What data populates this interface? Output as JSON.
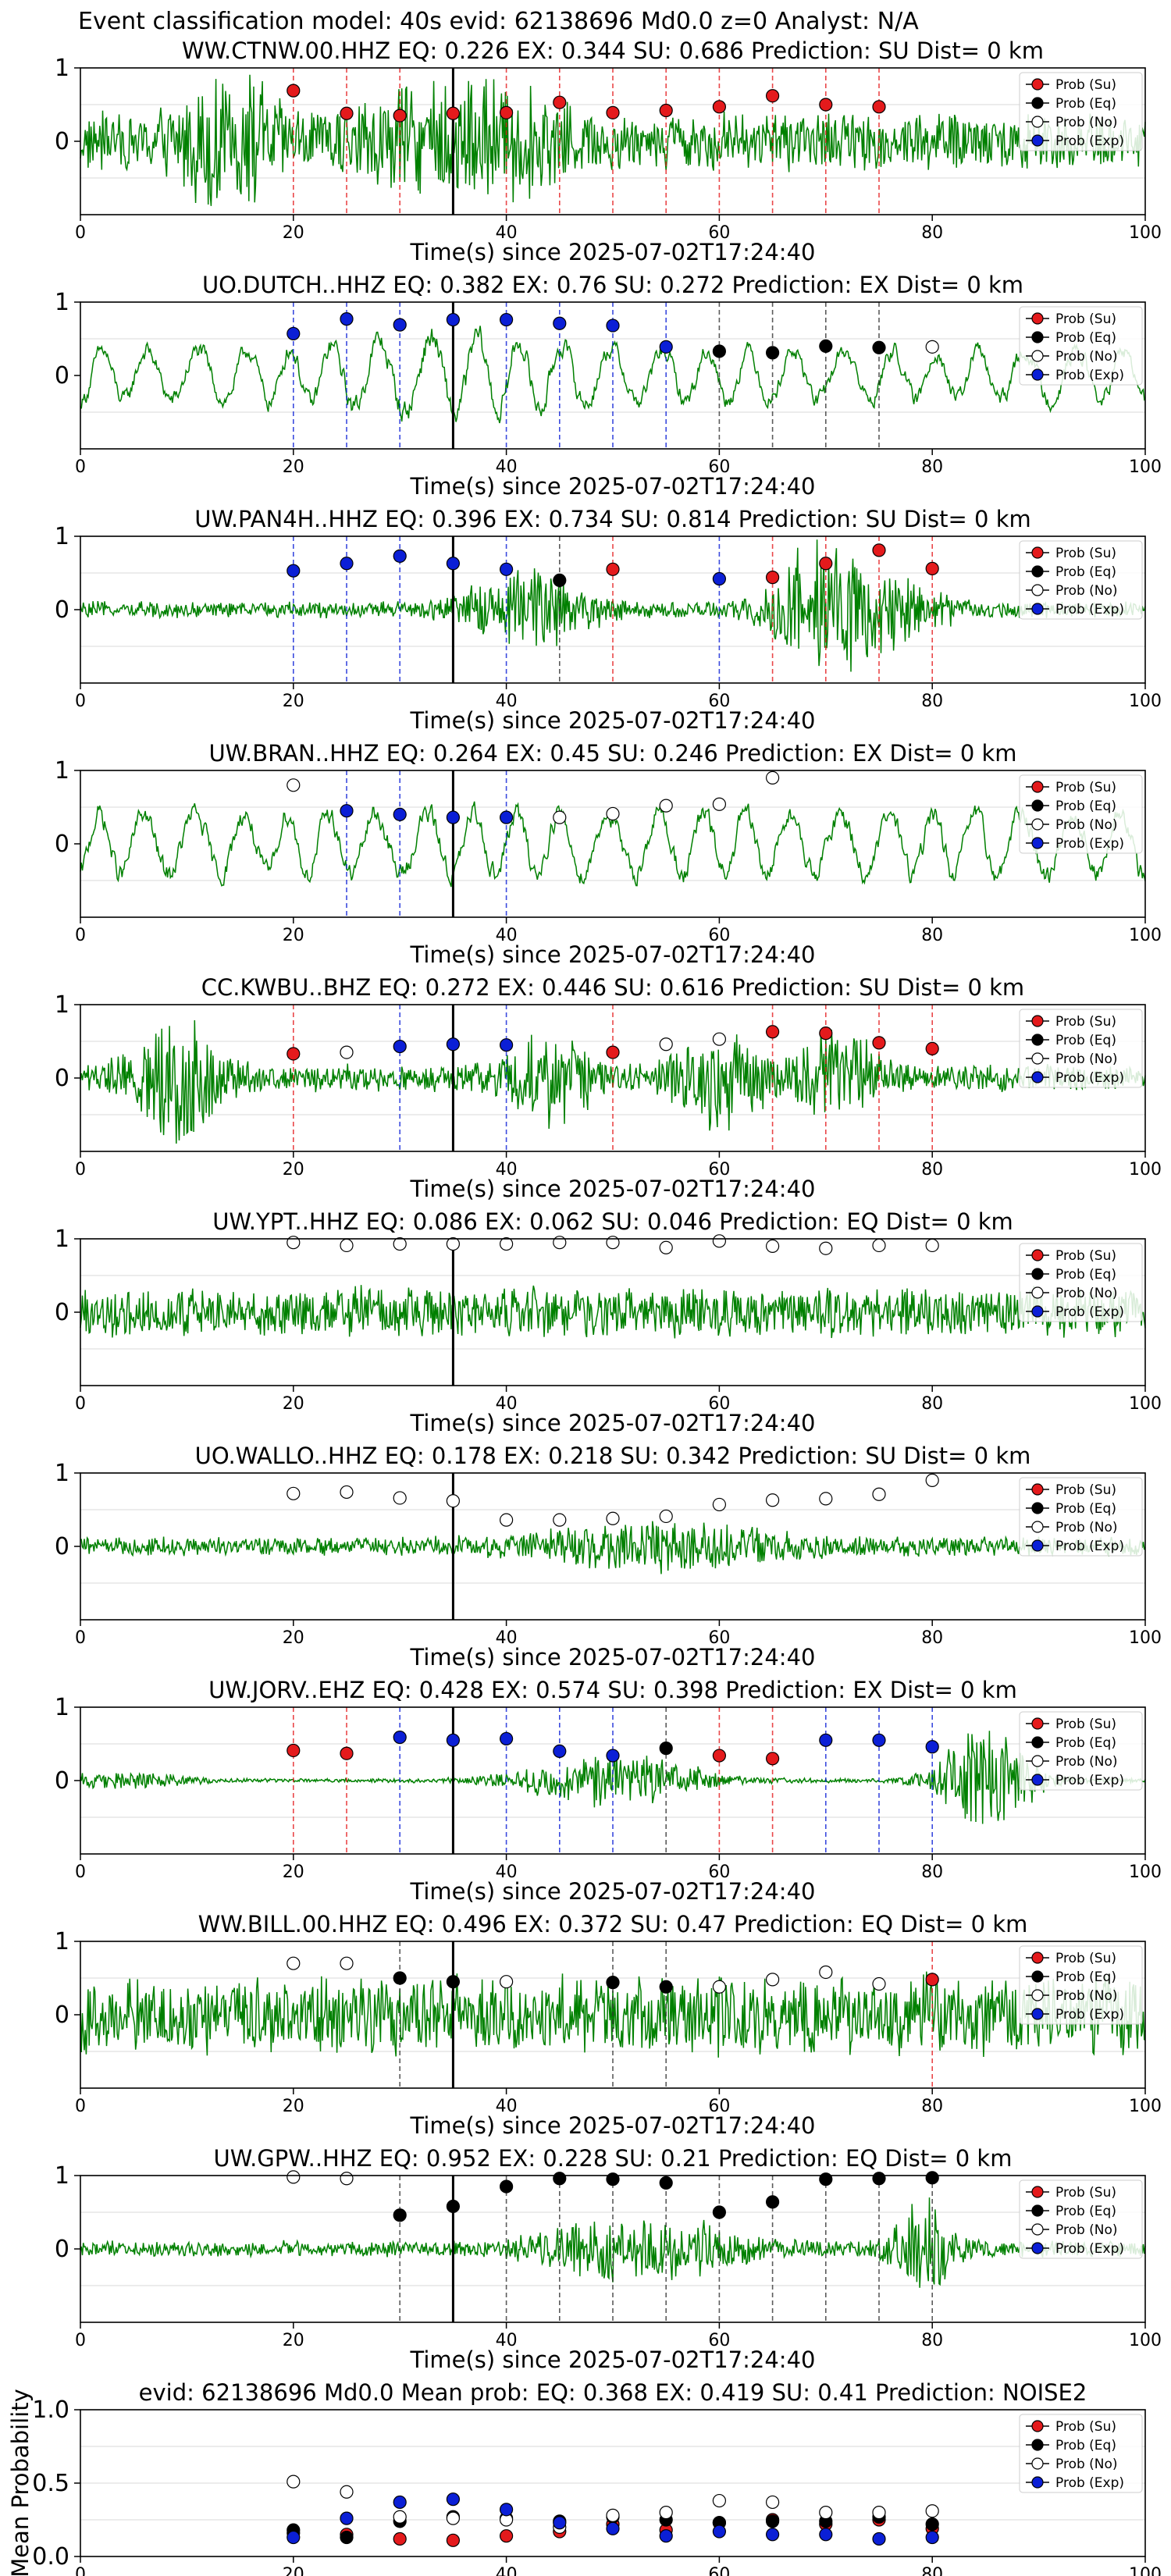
{
  "figure": {
    "title": "Event classification model: 40s evid: 62138696 Md0.0 z=0 Analyst: N/A",
    "xlabel": "Time(s) since 2025-07-02T17:24:40",
    "xlim": [
      0,
      100
    ],
    "xticks": [
      "0",
      "20",
      "40",
      "60",
      "80",
      "100"
    ],
    "vline_time": 35,
    "legend": [
      "Prob (Su)",
      "Prob (Eq)",
      "Prob (No)",
      "Prob (Exp)"
    ]
  },
  "colors": {
    "trace": "#008000",
    "Su": "#e41a1c",
    "Eq": "#000000",
    "No": "#ffffff",
    "Exp": "#0b1fd6",
    "grid": "#e6e6e6"
  },
  "chart_data": [
    {
      "type": "scatter",
      "title": "WW.CTNW.00.HHZ   EQ: 0.226  EX: 0.344  SU: 0.686   Prediction: SU    Dist= 0 km",
      "ylim": [
        -1,
        1
      ],
      "yticks": [
        "0",
        "1"
      ],
      "waveform": {
        "amp": 0.45,
        "character": "burst",
        "bursts": [
          {
            "t": 14,
            "a": 0.75,
            "w": 3
          },
          {
            "t": 36,
            "a": 0.6,
            "w": 6
          }
        ]
      },
      "points": [
        {
          "x": 20,
          "y": 0.69,
          "class": "Su"
        },
        {
          "x": 25,
          "y": 0.38,
          "class": "Su"
        },
        {
          "x": 30,
          "y": 0.35,
          "class": "Su"
        },
        {
          "x": 35,
          "y": 0.38,
          "class": "Su"
        },
        {
          "x": 40,
          "y": 0.39,
          "class": "Su"
        },
        {
          "x": 45,
          "y": 0.53,
          "class": "Su"
        },
        {
          "x": 50,
          "y": 0.39,
          "class": "Su"
        },
        {
          "x": 55,
          "y": 0.42,
          "class": "Su"
        },
        {
          "x": 60,
          "y": 0.47,
          "class": "Su"
        },
        {
          "x": 65,
          "y": 0.62,
          "class": "Su"
        },
        {
          "x": 70,
          "y": 0.5,
          "class": "Su"
        },
        {
          "x": 75,
          "y": 0.47,
          "class": "Su"
        }
      ]
    },
    {
      "type": "scatter",
      "title": "UO.DUTCH..HHZ   EQ: 0.382  EX: 0.76  SU: 0.272   Prediction: EX    Dist= 0 km",
      "ylim": [
        -1,
        1
      ],
      "yticks": [
        "0",
        "1"
      ],
      "waveform": {
        "amp": 0.45,
        "character": "oscillation",
        "bursts": [
          {
            "t": 35,
            "a": 0.25,
            "w": 8
          }
        ]
      },
      "points": [
        {
          "x": 20,
          "y": 0.57,
          "class": "Exp"
        },
        {
          "x": 25,
          "y": 0.77,
          "class": "Exp"
        },
        {
          "x": 30,
          "y": 0.69,
          "class": "Exp"
        },
        {
          "x": 35,
          "y": 0.76,
          "class": "Exp"
        },
        {
          "x": 40,
          "y": 0.76,
          "class": "Exp"
        },
        {
          "x": 45,
          "y": 0.71,
          "class": "Exp"
        },
        {
          "x": 50,
          "y": 0.68,
          "class": "Exp"
        },
        {
          "x": 55,
          "y": 0.39,
          "class": "Exp"
        },
        {
          "x": 60,
          "y": 0.33,
          "class": "Eq"
        },
        {
          "x": 65,
          "y": 0.31,
          "class": "Eq"
        },
        {
          "x": 70,
          "y": 0.4,
          "class": "Eq"
        },
        {
          "x": 75,
          "y": 0.38,
          "class": "Eq"
        },
        {
          "x": 80,
          "y": 0.39,
          "class": "No"
        }
      ]
    },
    {
      "type": "scatter",
      "title": "UW.PAN4H..HHZ   EQ: 0.396  EX: 0.734  SU: 0.814   Prediction: SU    Dist= 0 km",
      "ylim": [
        -1,
        1
      ],
      "yticks": [
        "0",
        "1"
      ],
      "waveform": {
        "amp": 0.12,
        "character": "burst",
        "bursts": [
          {
            "t": 42,
            "a": 0.55,
            "w": 4
          },
          {
            "t": 69,
            "a": 0.8,
            "w": 3
          },
          {
            "t": 75,
            "a": 0.5,
            "w": 4
          }
        ]
      },
      "points": [
        {
          "x": 20,
          "y": 0.53,
          "class": "Exp"
        },
        {
          "x": 25,
          "y": 0.63,
          "class": "Exp"
        },
        {
          "x": 30,
          "y": 0.73,
          "class": "Exp"
        },
        {
          "x": 35,
          "y": 0.63,
          "class": "Exp"
        },
        {
          "x": 40,
          "y": 0.55,
          "class": "Exp"
        },
        {
          "x": 45,
          "y": 0.4,
          "class": "Eq"
        },
        {
          "x": 50,
          "y": 0.55,
          "class": "Su"
        },
        {
          "x": 60,
          "y": 0.42,
          "class": "Exp"
        },
        {
          "x": 65,
          "y": 0.44,
          "class": "Su"
        },
        {
          "x": 70,
          "y": 0.63,
          "class": "Su"
        },
        {
          "x": 75,
          "y": 0.81,
          "class": "Su"
        },
        {
          "x": 80,
          "y": 0.56,
          "class": "Su"
        }
      ]
    },
    {
      "type": "scatter",
      "title": "UW.BRAN..HHZ   EQ: 0.264  EX: 0.45  SU: 0.246   Prediction: EX    Dist= 0 km",
      "ylim": [
        -1,
        1
      ],
      "yticks": [
        "0",
        "1"
      ],
      "waveform": {
        "amp": 0.55,
        "character": "oscillation",
        "bursts": []
      },
      "points": [
        {
          "x": 20,
          "y": 0.8,
          "class": "No"
        },
        {
          "x": 25,
          "y": 0.45,
          "class": "Exp"
        },
        {
          "x": 30,
          "y": 0.4,
          "class": "Exp"
        },
        {
          "x": 35,
          "y": 0.36,
          "class": "Exp"
        },
        {
          "x": 40,
          "y": 0.36,
          "class": "Exp"
        },
        {
          "x": 45,
          "y": 0.36,
          "class": "No"
        },
        {
          "x": 50,
          "y": 0.41,
          "class": "No"
        },
        {
          "x": 55,
          "y": 0.52,
          "class": "No"
        },
        {
          "x": 60,
          "y": 0.54,
          "class": "No"
        },
        {
          "x": 65,
          "y": 0.9,
          "class": "No"
        }
      ]
    },
    {
      "type": "scatter",
      "title": "CC.KWBU..BHZ   EQ: 0.272  EX: 0.446  SU: 0.616   Prediction: SU    Dist= 0 km",
      "ylim": [
        -1,
        1
      ],
      "yticks": [
        "0",
        "1"
      ],
      "waveform": {
        "amp": 0.2,
        "character": "burst",
        "bursts": [
          {
            "t": 9,
            "a": 0.85,
            "w": 3
          },
          {
            "t": 44,
            "a": 0.55,
            "w": 3
          },
          {
            "t": 60,
            "a": 0.6,
            "w": 3
          },
          {
            "t": 71,
            "a": 0.6,
            "w": 3
          }
        ]
      },
      "points": [
        {
          "x": 20,
          "y": 0.33,
          "class": "Su"
        },
        {
          "x": 25,
          "y": 0.35,
          "class": "No"
        },
        {
          "x": 30,
          "y": 0.43,
          "class": "Exp"
        },
        {
          "x": 35,
          "y": 0.46,
          "class": "Exp"
        },
        {
          "x": 40,
          "y": 0.45,
          "class": "Exp"
        },
        {
          "x": 50,
          "y": 0.35,
          "class": "Su"
        },
        {
          "x": 55,
          "y": 0.46,
          "class": "No"
        },
        {
          "x": 60,
          "y": 0.53,
          "class": "No"
        },
        {
          "x": 65,
          "y": 0.63,
          "class": "Su"
        },
        {
          "x": 70,
          "y": 0.61,
          "class": "Su"
        },
        {
          "x": 75,
          "y": 0.48,
          "class": "Su"
        },
        {
          "x": 80,
          "y": 0.4,
          "class": "Su"
        }
      ]
    },
    {
      "type": "scatter",
      "title": "UW.YPT..HHZ   EQ: 0.086  EX: 0.062  SU: 0.046   Prediction: EQ    Dist= 0 km",
      "ylim": [
        -1,
        1
      ],
      "yticks": [
        "0",
        "1"
      ],
      "waveform": {
        "amp": 0.38,
        "character": "noise",
        "bursts": []
      },
      "points": [
        {
          "x": 20,
          "y": 0.95,
          "class": "No"
        },
        {
          "x": 25,
          "y": 0.91,
          "class": "No"
        },
        {
          "x": 30,
          "y": 0.93,
          "class": "No"
        },
        {
          "x": 35,
          "y": 0.93,
          "class": "No"
        },
        {
          "x": 40,
          "y": 0.93,
          "class": "No"
        },
        {
          "x": 45,
          "y": 0.95,
          "class": "No"
        },
        {
          "x": 50,
          "y": 0.95,
          "class": "No"
        },
        {
          "x": 55,
          "y": 0.88,
          "class": "No"
        },
        {
          "x": 60,
          "y": 0.97,
          "class": "No"
        },
        {
          "x": 65,
          "y": 0.9,
          "class": "No"
        },
        {
          "x": 70,
          "y": 0.87,
          "class": "No"
        },
        {
          "x": 75,
          "y": 0.91,
          "class": "No"
        },
        {
          "x": 80,
          "y": 0.91,
          "class": "No"
        }
      ]
    },
    {
      "type": "scatter",
      "title": "UO.WALLO..HHZ   EQ: 0.178  EX: 0.218  SU: 0.342   Prediction: SU    Dist= 0 km",
      "ylim": [
        -1,
        1
      ],
      "yticks": [
        "0",
        "1"
      ],
      "waveform": {
        "amp": 0.14,
        "character": "noise",
        "bursts": [
          {
            "t": 55,
            "a": 0.3,
            "w": 8
          }
        ]
      },
      "points": [
        {
          "x": 20,
          "y": 0.72,
          "class": "No"
        },
        {
          "x": 25,
          "y": 0.74,
          "class": "No"
        },
        {
          "x": 30,
          "y": 0.66,
          "class": "No"
        },
        {
          "x": 35,
          "y": 0.62,
          "class": "No"
        },
        {
          "x": 40,
          "y": 0.36,
          "class": "No"
        },
        {
          "x": 45,
          "y": 0.36,
          "class": "No"
        },
        {
          "x": 50,
          "y": 0.38,
          "class": "No"
        },
        {
          "x": 55,
          "y": 0.41,
          "class": "No"
        },
        {
          "x": 60,
          "y": 0.57,
          "class": "No"
        },
        {
          "x": 65,
          "y": 0.63,
          "class": "No"
        },
        {
          "x": 70,
          "y": 0.65,
          "class": "No"
        },
        {
          "x": 75,
          "y": 0.71,
          "class": "No"
        },
        {
          "x": 80,
          "y": 0.9,
          "class": "No"
        }
      ]
    },
    {
      "type": "scatter",
      "title": "UW.JORV..EHZ   EQ: 0.428  EX: 0.574  SU: 0.398   Prediction: EX    Dist= 0 km",
      "ylim": [
        -1,
        1
      ],
      "yticks": [
        "0",
        "1"
      ],
      "waveform": {
        "amp": 0.03,
        "character": "burst",
        "bursts": [
          {
            "t": 4,
            "a": 0.12,
            "w": 4
          },
          {
            "t": 50,
            "a": 0.4,
            "w": 6
          },
          {
            "t": 85,
            "a": 0.85,
            "w": 3
          }
        ]
      },
      "points": [
        {
          "x": 20,
          "y": 0.41,
          "class": "Su"
        },
        {
          "x": 25,
          "y": 0.37,
          "class": "Su"
        },
        {
          "x": 30,
          "y": 0.59,
          "class": "Exp"
        },
        {
          "x": 35,
          "y": 0.55,
          "class": "Exp"
        },
        {
          "x": 40,
          "y": 0.57,
          "class": "Exp"
        },
        {
          "x": 45,
          "y": 0.4,
          "class": "Exp"
        },
        {
          "x": 50,
          "y": 0.34,
          "class": "Exp"
        },
        {
          "x": 55,
          "y": 0.44,
          "class": "Eq"
        },
        {
          "x": 60,
          "y": 0.34,
          "class": "Su"
        },
        {
          "x": 65,
          "y": 0.3,
          "class": "Su"
        },
        {
          "x": 70,
          "y": 0.55,
          "class": "Exp"
        },
        {
          "x": 75,
          "y": 0.55,
          "class": "Exp"
        },
        {
          "x": 80,
          "y": 0.46,
          "class": "Exp"
        }
      ]
    },
    {
      "type": "scatter",
      "title": "WW.BILL.00.HHZ   EQ: 0.496  EX: 0.372  SU: 0.47   Prediction: EQ    Dist= 0 km",
      "ylim": [
        -1,
        1
      ],
      "yticks": [
        "0",
        "1"
      ],
      "waveform": {
        "amp": 0.6,
        "character": "noise",
        "bursts": []
      },
      "points": [
        {
          "x": 20,
          "y": 0.7,
          "class": "No"
        },
        {
          "x": 25,
          "y": 0.7,
          "class": "No"
        },
        {
          "x": 30,
          "y": 0.5,
          "class": "Eq"
        },
        {
          "x": 35,
          "y": 0.45,
          "class": "Eq"
        },
        {
          "x": 40,
          "y": 0.45,
          "class": "No"
        },
        {
          "x": 50,
          "y": 0.44,
          "class": "Eq"
        },
        {
          "x": 55,
          "y": 0.38,
          "class": "Eq"
        },
        {
          "x": 60,
          "y": 0.38,
          "class": "No"
        },
        {
          "x": 65,
          "y": 0.48,
          "class": "No"
        },
        {
          "x": 70,
          "y": 0.58,
          "class": "No"
        },
        {
          "x": 75,
          "y": 0.42,
          "class": "No"
        },
        {
          "x": 80,
          "y": 0.48,
          "class": "Su"
        }
      ]
    },
    {
      "type": "scatter",
      "title": "UW.GPW..HHZ   EQ: 0.952  EX: 0.228  SU: 0.21   Prediction: EQ    Dist= 0 km",
      "ylim": [
        -1,
        1
      ],
      "yticks": [
        "0",
        "1"
      ],
      "waveform": {
        "amp": 0.12,
        "character": "burst",
        "bursts": [
          {
            "t": 48,
            "a": 0.35,
            "w": 4
          },
          {
            "t": 57,
            "a": 0.3,
            "w": 4
          },
          {
            "t": 79,
            "a": 0.75,
            "w": 2
          }
        ]
      },
      "points": [
        {
          "x": 20,
          "y": 0.98,
          "class": "No"
        },
        {
          "x": 25,
          "y": 0.96,
          "class": "No"
        },
        {
          "x": 30,
          "y": 0.46,
          "class": "Eq"
        },
        {
          "x": 35,
          "y": 0.58,
          "class": "Eq"
        },
        {
          "x": 40,
          "y": 0.85,
          "class": "Eq"
        },
        {
          "x": 45,
          "y": 0.96,
          "class": "Eq"
        },
        {
          "x": 50,
          "y": 0.95,
          "class": "Eq"
        },
        {
          "x": 55,
          "y": 0.9,
          "class": "Eq"
        },
        {
          "x": 60,
          "y": 0.5,
          "class": "Eq"
        },
        {
          "x": 65,
          "y": 0.64,
          "class": "Eq"
        },
        {
          "x": 70,
          "y": 0.95,
          "class": "Eq"
        },
        {
          "x": 75,
          "y": 0.96,
          "class": "Eq"
        },
        {
          "x": 80,
          "y": 0.97,
          "class": "Eq"
        }
      ]
    },
    {
      "type": "scatter",
      "title": "evid: 62138696   Md0.0   Mean prob:   EQ: 0.368  EX: 0.419  SU: 0.41   Prediction: NOISE2",
      "ylabel": "Mean Probability",
      "ylim": [
        0,
        1
      ],
      "yticks": [
        "0.0",
        "0.5",
        "1.0"
      ],
      "x": [
        20,
        25,
        30,
        35,
        40,
        45,
        50,
        55,
        60,
        65,
        70,
        75,
        80
      ],
      "series": [
        {
          "name": "Prob (Su)",
          "class": "Su",
          "values": [
            0.16,
            0.15,
            0.12,
            0.11,
            0.14,
            0.17,
            0.22,
            0.18,
            0.23,
            0.25,
            0.22,
            0.25,
            0.19
          ]
        },
        {
          "name": "Prob (Eq)",
          "class": "Eq",
          "values": [
            0.18,
            0.13,
            0.24,
            0.27,
            0.26,
            0.24,
            0.27,
            0.25,
            0.23,
            0.24,
            0.24,
            0.27,
            0.22
          ]
        },
        {
          "name": "Prob (No)",
          "class": "No",
          "values": [
            0.51,
            0.44,
            0.27,
            0.26,
            0.25,
            0.2,
            0.28,
            0.3,
            0.38,
            0.37,
            0.3,
            0.3,
            0.31
          ]
        },
        {
          "name": "Prob (Exp)",
          "class": "Exp",
          "values": [
            0.13,
            0.26,
            0.37,
            0.39,
            0.32,
            0.23,
            0.19,
            0.14,
            0.17,
            0.15,
            0.15,
            0.12,
            0.13
          ]
        }
      ]
    }
  ]
}
